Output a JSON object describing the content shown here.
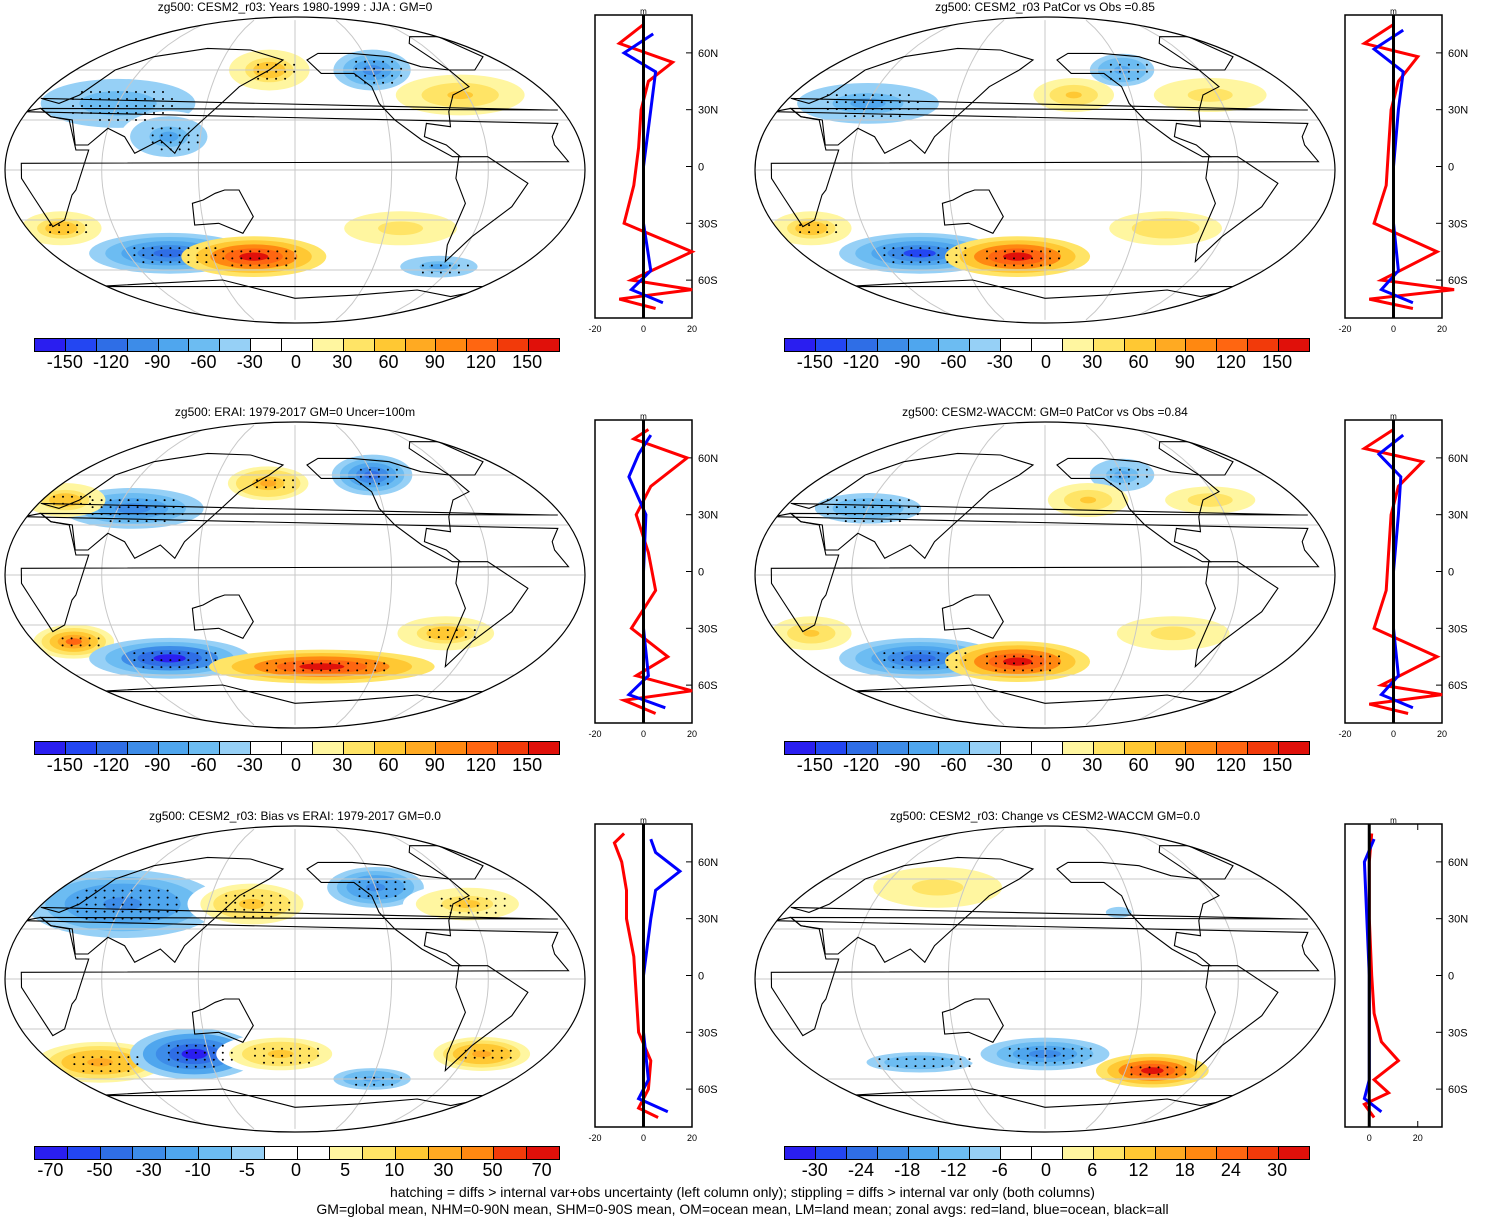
{
  "palettes": {
    "warm_cool": [
      "#2a1ef0",
      "#2346f2",
      "#2f6ee6",
      "#3d8ce8",
      "#4fa6ee",
      "#6cbcf2",
      "#96d0f6",
      "#ffffff",
      "#ffffff",
      "#fff6a0",
      "#ffe466",
      "#ffc833",
      "#ffaa22",
      "#ff8811",
      "#ff6611",
      "#f23a0a",
      "#e0100a"
    ],
    "bias": [
      "#2a1ef0",
      "#2346f2",
      "#2f6ee6",
      "#3d8ce8",
      "#4fa6ee",
      "#6cbcf2",
      "#96d0f6",
      "#ffffff",
      "#ffffff",
      "#fff6a0",
      "#ffe466",
      "#ffc833",
      "#ffaa22",
      "#ff8811",
      "#f23a0a",
      "#e0100a"
    ]
  },
  "line_colors": {
    "land": "#ff0000",
    "ocean": "#0000ff",
    "all": "#000000"
  },
  "lat_labels": [
    "60N",
    "30N",
    "0",
    "30S",
    "60S"
  ],
  "panels": [
    {
      "id": "p1",
      "title": "zg500: CESM2_r03: Years 1980-1999 : JJA : GM=0",
      "cbar_labels": [
        "-150",
        "-120",
        "-90",
        "-60",
        "-30",
        "0",
        "30",
        "60",
        "90",
        "120",
        "150"
      ],
      "zonal_units": "m",
      "zonal_xticks": [
        "-20",
        "0",
        "20"
      ],
      "zonal_xlim": [
        -20,
        20
      ],
      "blobs": [
        {
          "lon": 60,
          "lat": 40,
          "rx": 60,
          "ry": 18,
          "v": -45
        },
        {
          "lon": 100,
          "lat": 20,
          "rx": 30,
          "ry": 15,
          "v": -50
        },
        {
          "lon": 160,
          "lat": 60,
          "rx": 25,
          "ry": 12,
          "v": 40
        },
        {
          "lon": 240,
          "lat": 60,
          "rx": 30,
          "ry": 15,
          "v": -60
        },
        {
          "lon": 295,
          "lat": 45,
          "rx": 40,
          "ry": 12,
          "v": 35
        },
        {
          "lon": 25,
          "lat": -35,
          "rx": 25,
          "ry": 10,
          "v": 40
        },
        {
          "lon": 90,
          "lat": -50,
          "rx": 50,
          "ry": 12,
          "v": -80
        },
        {
          "lon": 150,
          "lat": -52,
          "rx": 45,
          "ry": 12,
          "v": 100
        },
        {
          "lon": 250,
          "lat": -35,
          "rx": 35,
          "ry": 10,
          "v": 30
        },
        {
          "lon": 290,
          "lat": -58,
          "rx": 30,
          "ry": 8,
          "v": -50
        }
      ],
      "zonal": {
        "land": [
          [
            -75,
            5
          ],
          [
            -70,
            -10
          ],
          [
            -65,
            20
          ],
          [
            -60,
            -5
          ],
          [
            -45,
            20
          ],
          [
            -30,
            -8
          ],
          [
            -10,
            -4
          ],
          [
            10,
            -2
          ],
          [
            30,
            -1
          ],
          [
            45,
            2
          ],
          [
            55,
            12
          ],
          [
            65,
            -10
          ],
          [
            75,
            0
          ]
        ],
        "ocean": [
          [
            -72,
            8
          ],
          [
            -65,
            -5
          ],
          [
            -55,
            3
          ],
          [
            -30,
            0
          ],
          [
            0,
            0
          ],
          [
            30,
            3
          ],
          [
            50,
            5
          ],
          [
            60,
            -8
          ],
          [
            70,
            4
          ]
        ]
      }
    },
    {
      "id": "p2",
      "title": "zg500: CESM2_r03 PatCor vs Obs =0.85",
      "cbar_labels": [
        "-150",
        "-120",
        "-90",
        "-60",
        "-30",
        "0",
        "30",
        "60",
        "90",
        "120",
        "150"
      ],
      "zonal_units": "m",
      "zonal_xticks": [
        "-20",
        "0",
        "20"
      ],
      "zonal_xlim": [
        -20,
        20
      ],
      "blobs": [
        {
          "lon": 60,
          "lat": 40,
          "rx": 55,
          "ry": 15,
          "v": -50
        },
        {
          "lon": 240,
          "lat": 60,
          "rx": 25,
          "ry": 12,
          "v": -60
        },
        {
          "lon": 200,
          "lat": 45,
          "rx": 25,
          "ry": 10,
          "v": 40
        },
        {
          "lon": 295,
          "lat": 45,
          "rx": 35,
          "ry": 10,
          "v": 30
        },
        {
          "lon": 25,
          "lat": -35,
          "rx": 25,
          "ry": 10,
          "v": 45
        },
        {
          "lon": 90,
          "lat": -50,
          "rx": 50,
          "ry": 12,
          "v": -95
        },
        {
          "lon": 160,
          "lat": -52,
          "rx": 45,
          "ry": 12,
          "v": 110
        },
        {
          "lon": 260,
          "lat": -35,
          "rx": 35,
          "ry": 10,
          "v": 35
        }
      ],
      "zonal": {
        "land": [
          [
            -75,
            8
          ],
          [
            -70,
            -10
          ],
          [
            -65,
            25
          ],
          [
            -60,
            -5
          ],
          [
            -45,
            18
          ],
          [
            -30,
            -8
          ],
          [
            -10,
            -3
          ],
          [
            10,
            -2
          ],
          [
            30,
            -1
          ],
          [
            45,
            2
          ],
          [
            58,
            10
          ],
          [
            65,
            -12
          ],
          [
            75,
            0
          ]
        ],
        "ocean": [
          [
            -72,
            8
          ],
          [
            -65,
            -5
          ],
          [
            -55,
            2
          ],
          [
            -30,
            0
          ],
          [
            0,
            0
          ],
          [
            30,
            2
          ],
          [
            50,
            4
          ],
          [
            62,
            -8
          ],
          [
            72,
            4
          ]
        ]
      }
    },
    {
      "id": "p3",
      "title": "zg500: ERAI: 1979-2017 GM=0 Uncer=100m",
      "cbar_labels": [
        "-150",
        "-120",
        "-90",
        "-60",
        "-30",
        "0",
        "30",
        "60",
        "90",
        "120",
        "150"
      ],
      "zonal_units": "m",
      "zonal_xticks": [
        "-20",
        "0",
        "20"
      ],
      "zonal_xlim": [
        -20,
        20
      ],
      "blobs": [
        {
          "lon": 70,
          "lat": 40,
          "rx": 55,
          "ry": 15,
          "v": -45
        },
        {
          "lon": 20,
          "lat": 45,
          "rx": 25,
          "ry": 10,
          "v": 30
        },
        {
          "lon": 240,
          "lat": 60,
          "rx": 25,
          "ry": 12,
          "v": -55
        },
        {
          "lon": 160,
          "lat": 55,
          "rx": 25,
          "ry": 10,
          "v": 35
        },
        {
          "lon": 30,
          "lat": -40,
          "rx": 25,
          "ry": 10,
          "v": 50
        },
        {
          "lon": 90,
          "lat": -50,
          "rx": 50,
          "ry": 12,
          "v": -70
        },
        {
          "lon": 200,
          "lat": -55,
          "rx": 70,
          "ry": 10,
          "v": 70
        },
        {
          "lon": 280,
          "lat": -35,
          "rx": 30,
          "ry": 10,
          "v": 30
        }
      ],
      "zonal": {
        "land": [
          [
            -75,
            5
          ],
          [
            -68,
            -8
          ],
          [
            -63,
            20
          ],
          [
            -55,
            -3
          ],
          [
            -45,
            10
          ],
          [
            -30,
            -5
          ],
          [
            -10,
            5
          ],
          [
            10,
            2
          ],
          [
            30,
            -3
          ],
          [
            45,
            3
          ],
          [
            60,
            18
          ],
          [
            70,
            -4
          ],
          [
            75,
            2
          ]
        ],
        "ocean": [
          [
            -72,
            9
          ],
          [
            -65,
            -6
          ],
          [
            -55,
            2
          ],
          [
            -30,
            0
          ],
          [
            0,
            0
          ],
          [
            30,
            1
          ],
          [
            50,
            -6
          ],
          [
            62,
            -2
          ],
          [
            72,
            3
          ]
        ]
      }
    },
    {
      "id": "p4",
      "title": "zg500: CESM2-WACCM: GM=0 PatCor vs Obs =0.84",
      "cbar_labels": [
        "-150",
        "-120",
        "-90",
        "-60",
        "-30",
        "0",
        "30",
        "60",
        "90",
        "120",
        "150"
      ],
      "zonal_units": "m",
      "zonal_xticks": [
        "-20",
        "0",
        "20"
      ],
      "zonal_xlim": [
        -20,
        20
      ],
      "blobs": [
        {
          "lon": 60,
          "lat": 40,
          "rx": 55,
          "ry": 15,
          "v": -50
        },
        {
          "lon": 240,
          "lat": 60,
          "rx": 25,
          "ry": 12,
          "v": -55
        },
        {
          "lon": 210,
          "lat": 45,
          "rx": 25,
          "ry": 10,
          "v": 40
        },
        {
          "lon": 295,
          "lat": 45,
          "rx": 35,
          "ry": 10,
          "v": 30
        },
        {
          "lon": 25,
          "lat": -35,
          "rx": 25,
          "ry": 10,
          "v": 45
        },
        {
          "lon": 90,
          "lat": -50,
          "rx": 50,
          "ry": 12,
          "v": -100
        },
        {
          "lon": 160,
          "lat": -52,
          "rx": 45,
          "ry": 12,
          "v": 120
        },
        {
          "lon": 265,
          "lat": -35,
          "rx": 35,
          "ry": 10,
          "v": 35
        }
      ],
      "zonal": {
        "land": [
          [
            -75,
            6
          ],
          [
            -70,
            -10
          ],
          [
            -65,
            20
          ],
          [
            -60,
            -5
          ],
          [
            -45,
            18
          ],
          [
            -30,
            -8
          ],
          [
            -10,
            -3
          ],
          [
            10,
            -2
          ],
          [
            30,
            -1
          ],
          [
            45,
            2
          ],
          [
            58,
            12
          ],
          [
            65,
            -12
          ],
          [
            75,
            0
          ]
        ],
        "ocean": [
          [
            -72,
            8
          ],
          [
            -65,
            -5
          ],
          [
            -55,
            2
          ],
          [
            -30,
            0
          ],
          [
            0,
            0
          ],
          [
            30,
            2
          ],
          [
            50,
            3
          ],
          [
            62,
            -6
          ],
          [
            72,
            4
          ]
        ]
      }
    },
    {
      "id": "p5",
      "title": "zg500: CESM2_r03: Bias vs ERAI: 1979-2017 GM=0.0",
      "cbar_labels": [
        "-70",
        "-50",
        "-30",
        "-10",
        "-5",
        "0",
        "5",
        "10",
        "30",
        "50",
        "70"
      ],
      "zonal_units": "m",
      "zonal_xticks": [
        "-20",
        "0",
        "20"
      ],
      "zonal_xlim": [
        -20,
        20
      ],
      "palette": "bias",
      "blobs": [
        {
          "lon": 60,
          "lat": 45,
          "rx": 60,
          "ry": 20,
          "v": -40
        },
        {
          "lon": 150,
          "lat": 45,
          "rx": 40,
          "ry": 15,
          "v": 30
        },
        {
          "lon": 240,
          "lat": 55,
          "rx": 30,
          "ry": 12,
          "v": -40
        },
        {
          "lon": 300,
          "lat": 45,
          "rx": 40,
          "ry": 12,
          "v": 25
        },
        {
          "lon": 40,
          "lat": -50,
          "rx": 40,
          "ry": 12,
          "v": 40
        },
        {
          "lon": 110,
          "lat": -45,
          "rx": 40,
          "ry": 15,
          "v": -60
        },
        {
          "lon": 170,
          "lat": -45,
          "rx": 40,
          "ry": 12,
          "v": 30
        },
        {
          "lon": 240,
          "lat": -60,
          "rx": 30,
          "ry": 8,
          "v": -30
        },
        {
          "lon": 310,
          "lat": -45,
          "rx": 30,
          "ry": 10,
          "v": 40
        }
      ],
      "zonal": {
        "land": [
          [
            -75,
            6
          ],
          [
            -70,
            -2
          ],
          [
            -60,
            2
          ],
          [
            -45,
            3
          ],
          [
            -30,
            -2
          ],
          [
            -10,
            -3
          ],
          [
            10,
            -4
          ],
          [
            30,
            -7
          ],
          [
            45,
            -7
          ],
          [
            60,
            -9
          ],
          [
            70,
            -12
          ],
          [
            75,
            -8
          ]
        ],
        "ocean": [
          [
            -72,
            10
          ],
          [
            -65,
            -2
          ],
          [
            -55,
            2
          ],
          [
            -30,
            0
          ],
          [
            0,
            0
          ],
          [
            30,
            3
          ],
          [
            45,
            5
          ],
          [
            55,
            15
          ],
          [
            65,
            5
          ],
          [
            72,
            3
          ]
        ]
      }
    },
    {
      "id": "p6",
      "title": "zg500: CESM2_r03: Change vs CESM2-WACCM GM=0.0",
      "cbar_labels": [
        "-30",
        "-24",
        "-18",
        "-12",
        "-6",
        "0",
        "6",
        "12",
        "18",
        "24",
        "30"
      ],
      "zonal_units": "m",
      "zonal_xticks": [
        "0",
        "20"
      ],
      "zonal_xlim": [
        -10,
        30
      ],
      "blobs": [
        {
          "lon": 100,
          "lat": 55,
          "rx": 40,
          "ry": 12,
          "v": 8
        },
        {
          "lon": 90,
          "lat": -50,
          "rx": 55,
          "ry": 10,
          "v": -12
        },
        {
          "lon": 180,
          "lat": -45,
          "rx": 50,
          "ry": 12,
          "v": -18
        },
        {
          "lon": 260,
          "lat": -55,
          "rx": 35,
          "ry": 10,
          "v": 28
        },
        {
          "lon": 230,
          "lat": 40,
          "rx": 20,
          "ry": 8,
          "v": -8
        }
      ],
      "zonal": {
        "land": [
          [
            -75,
            2
          ],
          [
            -68,
            -2
          ],
          [
            -62,
            8
          ],
          [
            -55,
            2
          ],
          [
            -45,
            12
          ],
          [
            -35,
            5
          ],
          [
            -20,
            2
          ],
          [
            0,
            1
          ],
          [
            30,
            0
          ],
          [
            60,
            0
          ],
          [
            75,
            1
          ]
        ],
        "ocean": [
          [
            -72,
            5
          ],
          [
            -65,
            -2
          ],
          [
            -55,
            0
          ],
          [
            0,
            0
          ],
          [
            60,
            -2
          ],
          [
            72,
            2
          ]
        ]
      }
    }
  ],
  "footer": {
    "line1": "hatching = diffs > internal var+obs uncertainty (left column only); stippling = diffs > internal var only (both columns)",
    "line2": "GM=global mean, NHM=0-90N mean, SHM=0-90S mean, OM=ocean mean, LM=land mean; zonal avgs: red=land, blue=ocean, black=all"
  }
}
